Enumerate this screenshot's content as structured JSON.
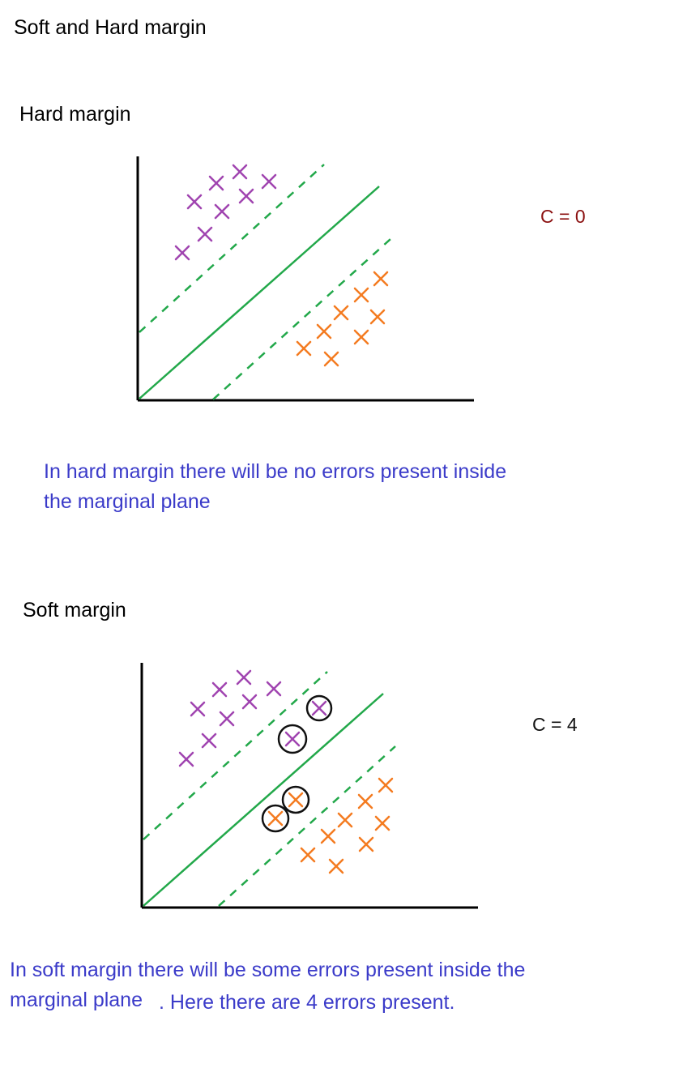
{
  "page_title": "Soft and Hard margin",
  "colors": {
    "purple": "#a044b0",
    "orange": "#f47b20",
    "green": "#22a84a",
    "note_blue": "#3b3bc9",
    "c_zero_red": "#8b1010",
    "c_four_black": "#111111",
    "axis": "#000000"
  },
  "hard_margin": {
    "heading": "Hard margin",
    "c_label": "C = 0",
    "note_line1": "In hard margin there will be no errors present inside",
    "note_line2": "the marginal plane",
    "purple_points": 10,
    "orange_points": 10,
    "errors": 0
  },
  "soft_margin": {
    "heading": "Soft margin",
    "c_label": "C = 4",
    "note_line1": "In soft margin there will be some errors present inside the",
    "note_line2a": "marginal plane",
    "note_line2b": ". Here there are 4 errors present.",
    "purple_points": 10,
    "orange_points": 10,
    "errors": 4,
    "error_markers": [
      "circled-purple-x",
      "circled-purple-x",
      "circled-orange-x",
      "circled-orange-x"
    ]
  }
}
